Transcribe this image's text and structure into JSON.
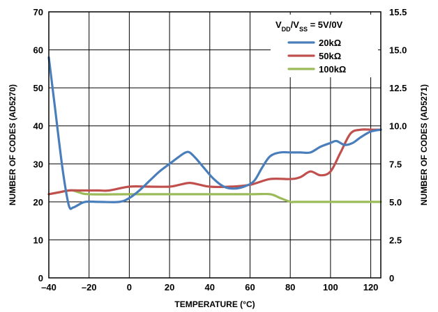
{
  "chart_data": {
    "type": "line",
    "xlabel": "TEMPERATURE (°C)",
    "ylabel": "NUMBER OF CODES (AD5270)",
    "y2label": "NUMBER OF CODES (AD5271)",
    "xlim": [
      -40,
      125
    ],
    "ylim": [
      0,
      70
    ],
    "y2lim": [
      0,
      17.5
    ],
    "x_ticks": [
      "–40",
      "–20",
      "0",
      "20",
      "40",
      "60",
      "80",
      "100",
      "120"
    ],
    "y_ticks": [
      "0",
      "10",
      "20",
      "30",
      "40",
      "50",
      "60",
      "70"
    ],
    "y2_ticks": [
      "0",
      "2.5",
      "5.0",
      "7.5",
      "10.0",
      "12.5",
      "15.0",
      "15.5"
    ],
    "grid": true,
    "legend_position": "top-right",
    "legend_title": {
      "v1": "V",
      "s1": "DD",
      "slash": "/V",
      "s2": "SS",
      "rest": " = 5V/0V"
    },
    "series": [
      {
        "name": "20kΩ",
        "color": "#4A7EBB",
        "x": [
          -40,
          -37,
          -33,
          -30,
          -28,
          -26,
          -22,
          -15,
          -5,
          0,
          5,
          10,
          15,
          20,
          25,
          28,
          30,
          33,
          37,
          42,
          47,
          52,
          57,
          62,
          66,
          70,
          75,
          80,
          85,
          90,
          95,
          100,
          103,
          107,
          111,
          115,
          120,
          125
        ],
        "y": [
          58,
          45,
          28,
          19,
          18.5,
          19,
          20,
          20,
          20,
          21,
          23,
          25.5,
          28,
          30,
          32,
          33,
          33,
          31.5,
          29,
          26,
          24,
          23.5,
          24,
          25.5,
          29,
          32,
          33,
          33,
          33,
          33,
          34.5,
          35.5,
          36,
          35,
          35.5,
          37,
          38.5,
          39
        ]
      },
      {
        "name": "50kΩ",
        "color": "#C0504D",
        "x": [
          -40,
          -35,
          -30,
          -25,
          -20,
          -15,
          -10,
          0,
          10,
          20,
          25,
          30,
          35,
          40,
          50,
          60,
          70,
          80,
          85,
          90,
          95,
          100,
          105,
          110,
          115,
          120,
          125
        ],
        "y": [
          22,
          22.5,
          23,
          23,
          23,
          23,
          23,
          24,
          24,
          24,
          24.5,
          25,
          24.5,
          24,
          24,
          24.5,
          26,
          26,
          26.5,
          28,
          27,
          28,
          33,
          38,
          39,
          39,
          39
        ]
      },
      {
        "name": "100kΩ",
        "color": "#9BBB59",
        "x": [
          -40,
          -35,
          -30,
          -28,
          -25,
          -20,
          0,
          20,
          40,
          60,
          70,
          75,
          80,
          82,
          90,
          100,
          110,
          120,
          125
        ],
        "y": [
          22,
          22.5,
          23,
          23,
          22.5,
          22,
          22,
          22,
          22,
          22,
          22,
          21,
          20,
          20,
          20,
          20,
          20,
          20,
          20
        ]
      }
    ]
  }
}
